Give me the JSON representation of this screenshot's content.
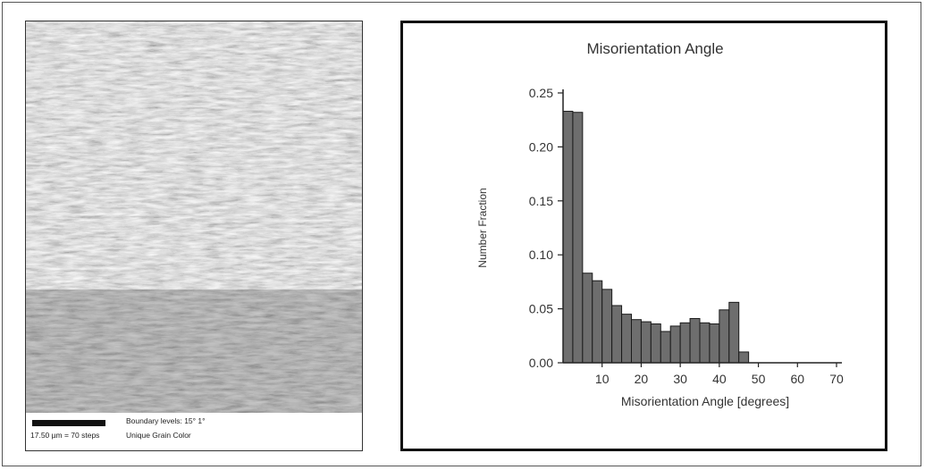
{
  "micrograph": {
    "boundary_text": "Boundary levels: 15° 1°",
    "scale_text": "17.50 µm = 70 steps",
    "color_text": "Unique Grain Color"
  },
  "chart_data": {
    "type": "bar",
    "title": "Misorientation Angle",
    "xlabel": "Misorientation Angle [degrees]",
    "ylabel": "Number Fraction",
    "bin_width": 2.5,
    "bin_starts": [
      0,
      2.5,
      5,
      7.5,
      10,
      12.5,
      15,
      17.5,
      20,
      22.5,
      25,
      27.5,
      30,
      32.5,
      35,
      37.5,
      40,
      42.5,
      45,
      47.5,
      50,
      52.5,
      55,
      57.5,
      60,
      62.5
    ],
    "values": [
      0.233,
      0.232,
      0.083,
      0.076,
      0.068,
      0.053,
      0.045,
      0.04,
      0.038,
      0.036,
      0.029,
      0.034,
      0.037,
      0.041,
      0.037,
      0.036,
      0.049,
      0.056,
      0.01,
      0,
      0,
      0,
      0,
      0,
      0,
      0
    ],
    "xlim": [
      0,
      70
    ],
    "ylim": [
      0,
      0.25
    ],
    "xticks": [
      "10",
      "20",
      "30",
      "40",
      "50",
      "60",
      "70"
    ],
    "yticks": [
      "0.00",
      "0.05",
      "0.10",
      "0.15",
      "0.20",
      "0.25"
    ],
    "bar_color": "#6e6e6e",
    "grid": false,
    "legend": "none"
  }
}
